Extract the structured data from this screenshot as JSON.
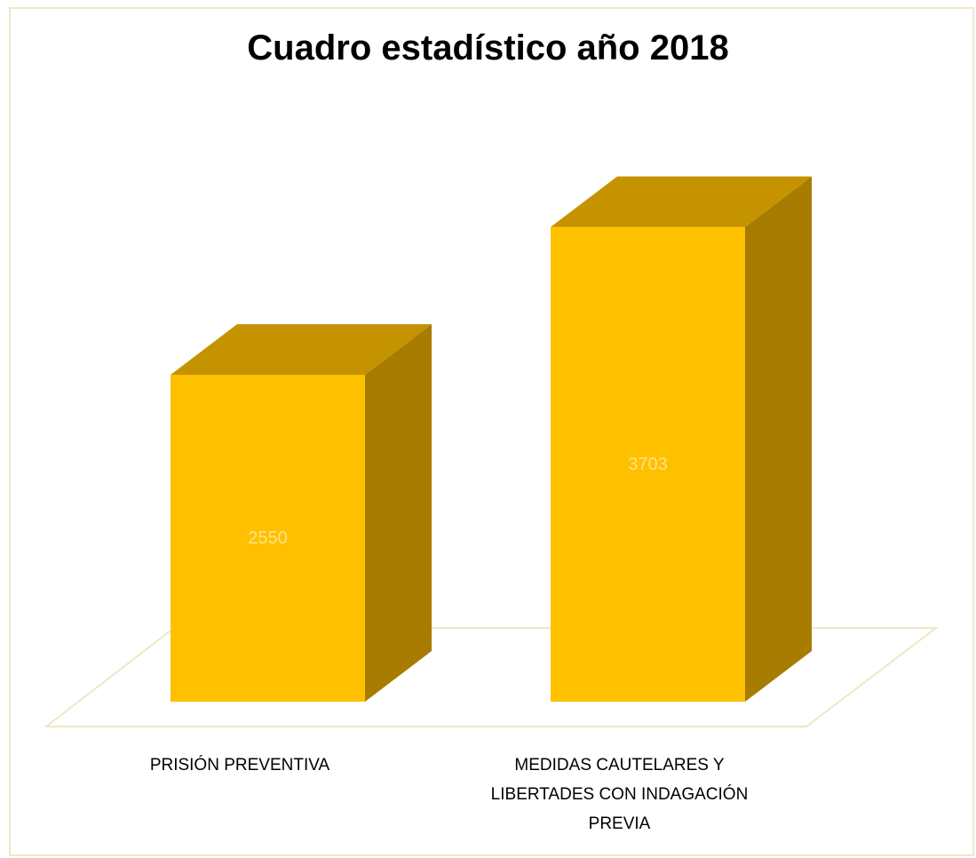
{
  "chart_data": {
    "type": "bar",
    "title": "Cuadro estadístico año 2018",
    "categories": [
      "PRISIÓN PREVENTIVA",
      "MEDIDAS CAUTELARES Y LIBERTADES CON INDAGACIÓN PREVIA"
    ],
    "values": [
      2550,
      3703
    ],
    "data_labels": [
      "2550",
      "3703"
    ],
    "xlabel": "",
    "ylabel": "",
    "grid": false,
    "legend": "none",
    "style": "3d-column",
    "colors": {
      "front": "#ffc000",
      "top": "#c59300",
      "side": "#a77c00",
      "floor": "#efe7c6",
      "frame": "#efe7c6",
      "label": "#ffe38a"
    }
  }
}
